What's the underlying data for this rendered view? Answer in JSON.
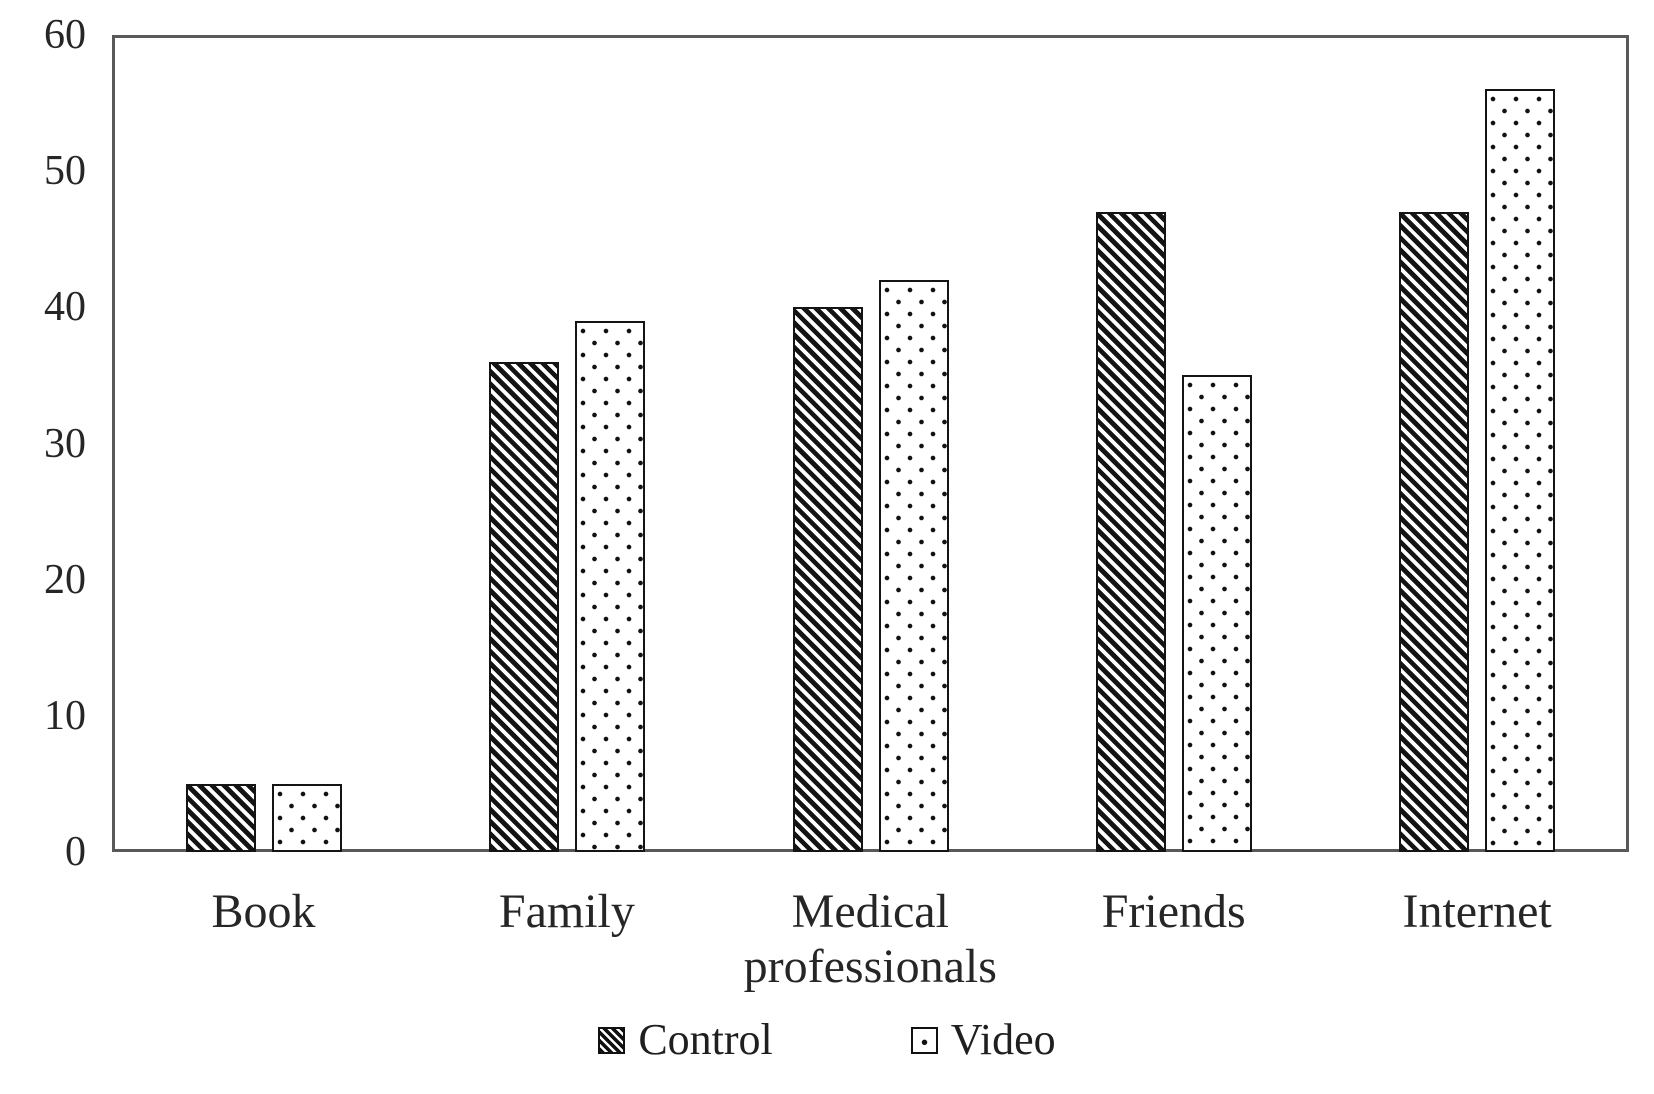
{
  "chart_data": {
    "type": "bar",
    "title": "",
    "xlabel": "",
    "ylabel": "",
    "categories": [
      "Book",
      "Family",
      "Medical professionals",
      "Friends",
      "Internet"
    ],
    "series": [
      {
        "name": "Control",
        "pattern": "diagonal-hatch",
        "values": [
          5,
          36,
          40,
          47,
          47
        ]
      },
      {
        "name": "Video",
        "pattern": "dotted",
        "values": [
          5,
          39,
          42,
          35,
          56
        ]
      }
    ],
    "ylim": [
      0,
      60
    ],
    "yticks": [
      0,
      10,
      20,
      30,
      40,
      50,
      60
    ],
    "grid": false,
    "legend_position": "bottom",
    "plot_border": true,
    "colors": {
      "foreground": "#111111",
      "background": "#ffffff",
      "axis": "#595959",
      "text": "#262626"
    }
  }
}
